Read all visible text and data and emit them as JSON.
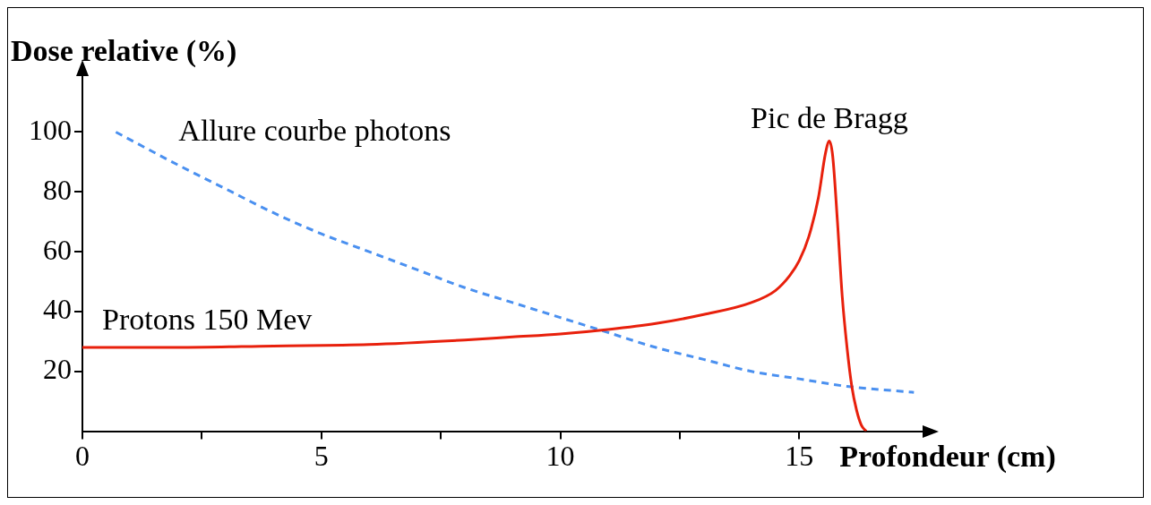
{
  "chart_data": {
    "type": "line",
    "xlabel": "Profondeur (cm)",
    "ylabel": "Dose relative (%)",
    "xlim": [
      0,
      17.6
    ],
    "ylim": [
      0,
      119
    ],
    "xticks": [
      0,
      {
        "value": 2.5,
        "label": null
      },
      5,
      {
        "value": 7.5,
        "label": null
      },
      10,
      {
        "value": 12.5,
        "label": null
      },
      15
    ],
    "yticks": [
      20,
      40,
      60,
      80,
      100
    ],
    "grid": false,
    "legend": false,
    "marker": "none",
    "series": [
      {
        "name": "Protons 150 Mev",
        "color": "#e8200c",
        "line_style": "solid",
        "x": [
          0,
          2,
          4,
          6,
          8,
          9,
          10,
          11,
          12,
          13,
          14,
          14.5,
          14.8,
          15,
          15.2,
          15.4,
          15.55,
          15.63,
          15.7,
          15.8,
          15.9,
          16,
          16.1,
          16.2,
          16.3,
          16.4
        ],
        "values": [
          28,
          28,
          28.5,
          29,
          30.5,
          31.5,
          32.5,
          34,
          36,
          39,
          43,
          47,
          52,
          57,
          65,
          78,
          93,
          97,
          92,
          70,
          45,
          28,
          15,
          7,
          2,
          0
        ]
      },
      {
        "name": "Allure courbe photons",
        "color": "#4a90f0",
        "line_style": "dashed",
        "x": [
          0.7,
          2,
          3,
          4,
          5,
          6,
          7,
          8,
          9,
          10,
          11,
          12,
          13,
          14,
          15,
          16,
          17.4
        ],
        "values": [
          100,
          89,
          81,
          73,
          66,
          60,
          54,
          48,
          43,
          38,
          33,
          28,
          24,
          20,
          17.5,
          15,
          13
        ]
      }
    ],
    "annotations": [
      "Pic de Bragg"
    ]
  }
}
